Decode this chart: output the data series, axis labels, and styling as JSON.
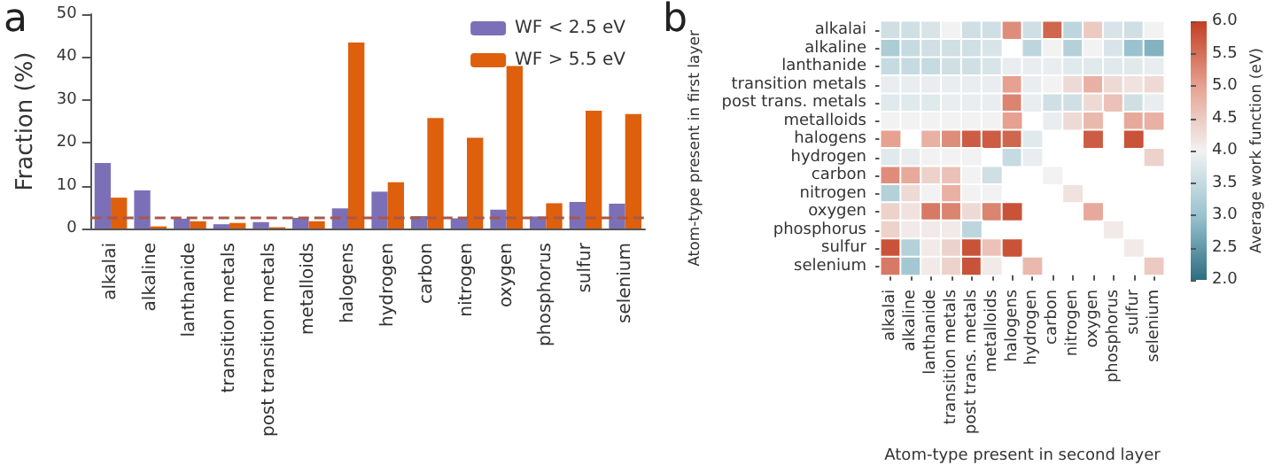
{
  "chart_data": [
    {
      "type": "bar",
      "ylabel": "Fraction (%)",
      "annotations": [
        "a"
      ],
      "categories": [
        "alkalai",
        "alkaline",
        "lanthanide",
        "transition metals",
        "post transition metals",
        "metalloids",
        "halogens",
        "hydrogen",
        "carbon",
        "nitrogen",
        "oxygen",
        "phosphorus",
        "sulfur",
        "selenium"
      ],
      "series": [
        {
          "name": "WF < 2.5 eV",
          "color": "#7b70b8",
          "values": [
            15.3,
            8.9,
            2.3,
            1.0,
            1.5,
            2.5,
            4.7,
            8.6,
            2.9,
            2.4,
            4.4,
            2.8,
            6.2,
            5.8
          ]
        },
        {
          "name": "WF > 5.5 eV",
          "color": "#de5f0c",
          "values": [
            7.2,
            0.5,
            1.7,
            1.3,
            0.3,
            1.7,
            43.4,
            10.8,
            25.8,
            21.2,
            37.9,
            5.9,
            27.5,
            26.7
          ]
        }
      ],
      "ylim": [
        0,
        50
      ],
      "yticks": [
        0,
        10,
        20,
        30,
        40,
        50
      ],
      "legend": "top right",
      "ref_lines": [
        {
          "axis": "y",
          "value": 2.7,
          "color": "#a8584a",
          "line_style": "dashed"
        }
      ]
    },
    {
      "type": "heatmap",
      "annotations": [
        "b"
      ],
      "xlabel": "Atom-type present in second layer",
      "ylabel": "Atom-type present in first layer",
      "clabel": "Average work function (eV)",
      "categories": [
        "alkalai",
        "alkaline",
        "lanthanide",
        "transition metals",
        "post trans. metals",
        "metalloids",
        "halogens",
        "hydrogen",
        "carbon",
        "nitrogen",
        "oxygen",
        "phosphorus",
        "sulfur",
        "selenium"
      ],
      "y_categories": [
        "alkalai",
        "alkaline",
        "lanthanide",
        "transition metals",
        "post trans. metals",
        "metalloids",
        "halogens",
        "hydrogen",
        "carbon",
        "nitrogen",
        "oxygen",
        "phosphorus",
        "sulfur",
        "selenium"
      ],
      "cells": [
        [
          3.6,
          3.6,
          3.7,
          4.0,
          3.6,
          3.6,
          5.2,
          3.6,
          5.6,
          3.4,
          4.5,
          3.7,
          3.6,
          4.0
        ],
        [
          3.2,
          3.5,
          3.6,
          3.6,
          3.6,
          3.7,
          null,
          3.4,
          4.0,
          3.3,
          4.0,
          3.7,
          3.0,
          2.8
        ],
        [
          3.5,
          3.5,
          3.5,
          3.6,
          3.6,
          3.7,
          3.9,
          3.9,
          3.9,
          3.8,
          3.8,
          3.8,
          3.8,
          3.9
        ],
        [
          3.9,
          3.9,
          3.9,
          3.9,
          3.9,
          3.9,
          5.0,
          3.9,
          4.0,
          4.3,
          4.8,
          4.3,
          4.2,
          4.3
        ],
        [
          3.8,
          3.8,
          3.8,
          3.9,
          3.9,
          3.9,
          5.3,
          3.9,
          3.6,
          3.6,
          4.3,
          4.6,
          3.6,
          3.9
        ],
        [
          4.0,
          4.0,
          4.0,
          4.0,
          4.0,
          4.0,
          5.0,
          null,
          3.9,
          4.3,
          4.7,
          null,
          4.9,
          4.8
        ],
        [
          5.0,
          null,
          4.8,
          5.2,
          5.7,
          5.7,
          5.6,
          3.8,
          null,
          null,
          5.7,
          null,
          5.8,
          null
        ],
        [
          3.8,
          3.9,
          4.0,
          4.0,
          4.0,
          null,
          3.5,
          3.9,
          null,
          null,
          null,
          null,
          null,
          4.4
        ],
        [
          5.2,
          4.9,
          4.4,
          4.6,
          4.0,
          3.6,
          null,
          null,
          4.0,
          null,
          null,
          null,
          null,
          null
        ],
        [
          3.3,
          4.3,
          4.0,
          4.8,
          4.0,
          4.0,
          null,
          null,
          null,
          4.2,
          null,
          null,
          null,
          null
        ],
        [
          4.4,
          4.2,
          5.4,
          5.3,
          4.3,
          5.3,
          5.8,
          null,
          null,
          null,
          4.9,
          null,
          null,
          null
        ],
        [
          4.4,
          4.1,
          4.1,
          4.1,
          3.4,
          null,
          null,
          null,
          null,
          null,
          null,
          4.1,
          null,
          null
        ],
        [
          5.8,
          3.3,
          4.1,
          4.4,
          5.8,
          4.6,
          5.8,
          null,
          null,
          null,
          null,
          null,
          4.1,
          null
        ],
        [
          5.4,
          3.1,
          4.1,
          4.4,
          5.8,
          4.1,
          null,
          4.7,
          null,
          null,
          null,
          null,
          null,
          4.5
        ]
      ],
      "clim": [
        2,
        6
      ],
      "cticks": [
        {
          "value": 2,
          "label": "2.0"
        },
        {
          "value": 2.5,
          "label": "2.5"
        },
        {
          "value": 3,
          "label": "3.0"
        },
        {
          "value": 3.5,
          "label": "3.5"
        },
        {
          "value": 4,
          "label": "4.0"
        },
        {
          "value": 4.5,
          "label": "4.5"
        },
        {
          "value": 5,
          "label": "5.0"
        },
        {
          "value": 5.5,
          "label": "5.5"
        },
        {
          "value": 6,
          "label": "6.0"
        }
      ]
    }
  ]
}
